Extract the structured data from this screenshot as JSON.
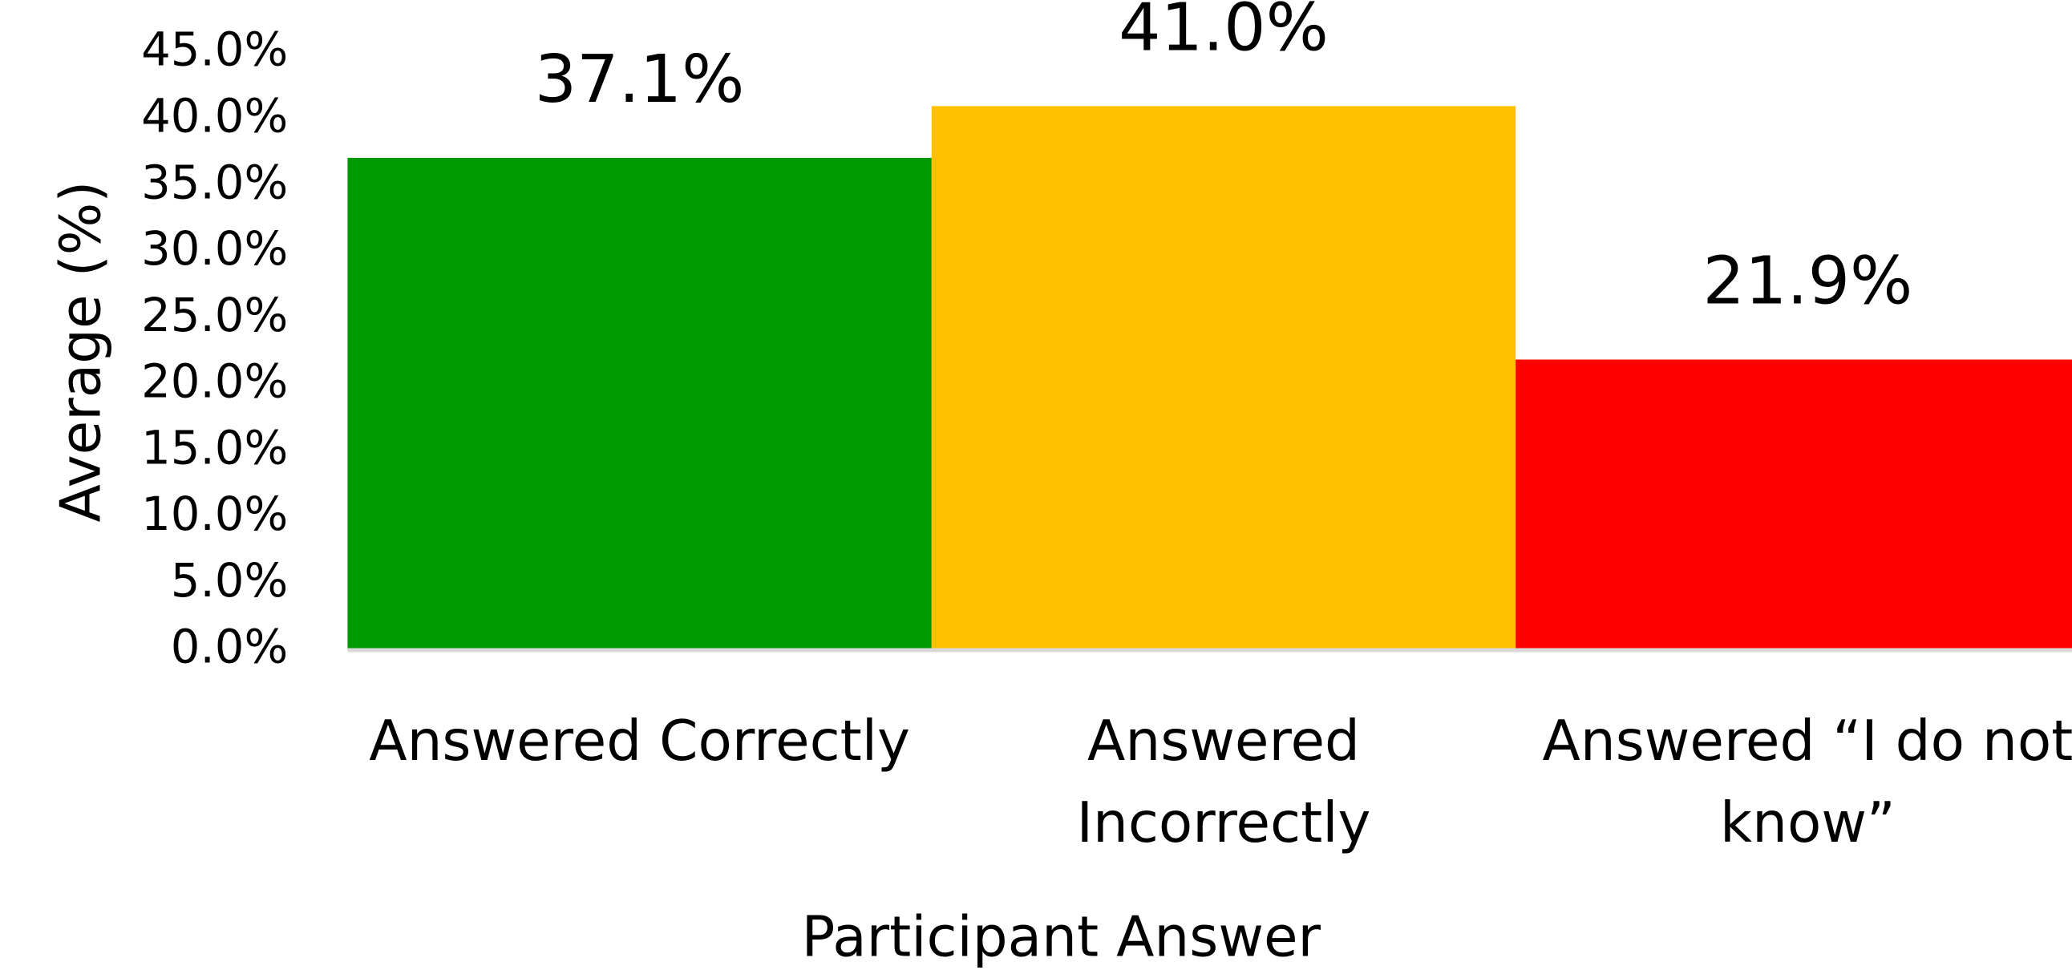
{
  "chart_data": {
    "type": "bar",
    "categories": [
      "Answered Correctly",
      "Answered Incorrectly",
      "Answered “I do not know”"
    ],
    "values": [
      37.1,
      41.0,
      21.9
    ],
    "value_labels": [
      "37.1%",
      "41.0%",
      "21.9%"
    ],
    "colors": [
      "#009900",
      "#ffc000",
      "#ff0000"
    ],
    "ylabel": "Average (%)",
    "xlabel": "Participant Answer",
    "ylim": [
      0,
      45
    ],
    "yticks": [
      {
        "value": 0,
        "label": "0.0%"
      },
      {
        "value": 5,
        "label": "5.0%"
      },
      {
        "value": 10,
        "label": "10.0%"
      },
      {
        "value": 15,
        "label": "15.0%"
      },
      {
        "value": 20,
        "label": "20.0%"
      },
      {
        "value": 25,
        "label": "25.0%"
      },
      {
        "value": 30,
        "label": "30.0%"
      },
      {
        "value": 35,
        "label": "35.0%"
      },
      {
        "value": 40,
        "label": "40.0%"
      },
      {
        "value": 45,
        "label": "45.0%"
      }
    ],
    "grid": false
  }
}
